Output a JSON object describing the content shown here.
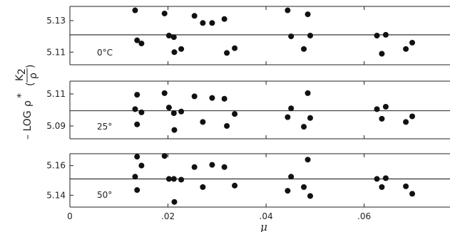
{
  "chart_data": {
    "type": "scatter",
    "xlabel": "μ",
    "ylabel": {
      "prefix": "– LOG",
      "rho": "ρ",
      "star": "*",
      "numerator": "K",
      "subscript": "2",
      "denominator": "ρ"
    },
    "x_ticks": [
      "0",
      ".02",
      ".04",
      ".06"
    ],
    "x_tick_values": [
      0,
      0.02,
      0.04,
      0.06
    ],
    "xlim": [
      0,
      0.0775
    ],
    "panels": [
      {
        "label": "0°C",
        "ylim": [
          5.102,
          5.139
        ],
        "y_ticks": [
          "5.13",
          "5.11"
        ],
        "y_tick_values": [
          5.13,
          5.11
        ],
        "reference_line": 5.121,
        "points": [
          [
            0.0133,
            5.1365
          ],
          [
            0.0137,
            5.1175
          ],
          [
            0.0146,
            5.1155
          ],
          [
            0.0193,
            5.1345
          ],
          [
            0.0202,
            5.1205
          ],
          [
            0.0212,
            5.1195
          ],
          [
            0.0213,
            5.11
          ],
          [
            0.0227,
            5.112
          ],
          [
            0.0254,
            5.133
          ],
          [
            0.0271,
            5.1285
          ],
          [
            0.029,
            5.1285
          ],
          [
            0.0315,
            5.131
          ],
          [
            0.032,
            5.1095
          ],
          [
            0.0336,
            5.1125
          ],
          [
            0.0444,
            5.1365
          ],
          [
            0.0451,
            5.12
          ],
          [
            0.0477,
            5.112
          ],
          [
            0.0485,
            5.134
          ],
          [
            0.049,
            5.1205
          ],
          [
            0.0626,
            5.1205
          ],
          [
            0.0636,
            5.109
          ],
          [
            0.0644,
            5.121
          ],
          [
            0.0685,
            5.112
          ],
          [
            0.0698,
            5.116
          ]
        ]
      },
      {
        "label": "25°",
        "ylim": [
          5.082,
          5.118
        ],
        "y_ticks": [
          "5.11",
          "5.09"
        ],
        "y_tick_values": [
          5.11,
          5.09
        ],
        "reference_line": 5.0995,
        "points": [
          [
            0.0133,
            5.1005
          ],
          [
            0.0137,
            5.1095
          ],
          [
            0.0137,
            5.091
          ],
          [
            0.0146,
            5.0985
          ],
          [
            0.0193,
            5.1105
          ],
          [
            0.0202,
            5.1015
          ],
          [
            0.0212,
            5.098
          ],
          [
            0.0213,
            5.0875
          ],
          [
            0.0227,
            5.099
          ],
          [
            0.0254,
            5.1085
          ],
          [
            0.0271,
            5.0925
          ],
          [
            0.029,
            5.1075
          ],
          [
            0.0315,
            5.107
          ],
          [
            0.032,
            5.09
          ],
          [
            0.0336,
            5.0975
          ],
          [
            0.0444,
            5.0955
          ],
          [
            0.0451,
            5.101
          ],
          [
            0.0477,
            5.0895
          ],
          [
            0.0485,
            5.1105
          ],
          [
            0.049,
            5.095
          ],
          [
            0.0626,
            5.1005
          ],
          [
            0.0636,
            5.0945
          ],
          [
            0.0644,
            5.102
          ],
          [
            0.0685,
            5.0925
          ],
          [
            0.0698,
            5.096
          ]
        ]
      },
      {
        "label": "50°",
        "ylim": [
          5.132,
          5.168
        ],
        "y_ticks": [
          "5.16",
          "5.14"
        ],
        "y_tick_values": [
          5.16,
          5.14
        ],
        "reference_line": 5.151,
        "points": [
          [
            0.0133,
            5.1525
          ],
          [
            0.0137,
            5.1435
          ],
          [
            0.0137,
            5.166
          ],
          [
            0.0146,
            5.16
          ],
          [
            0.0193,
            5.1665
          ],
          [
            0.0202,
            5.151
          ],
          [
            0.0212,
            5.151
          ],
          [
            0.0213,
            5.1355
          ],
          [
            0.0227,
            5.1505
          ],
          [
            0.0254,
            5.159
          ],
          [
            0.0271,
            5.1455
          ],
          [
            0.029,
            5.1605
          ],
          [
            0.0315,
            5.159
          ],
          [
            0.0336,
            5.1465
          ],
          [
            0.0444,
            5.143
          ],
          [
            0.0451,
            5.1525
          ],
          [
            0.0477,
            5.1455
          ],
          [
            0.0485,
            5.164
          ],
          [
            0.049,
            5.1395
          ],
          [
            0.0626,
            5.151
          ],
          [
            0.0636,
            5.1455
          ],
          [
            0.0644,
            5.1515
          ],
          [
            0.0685,
            5.146
          ],
          [
            0.0698,
            5.141
          ]
        ]
      }
    ]
  }
}
